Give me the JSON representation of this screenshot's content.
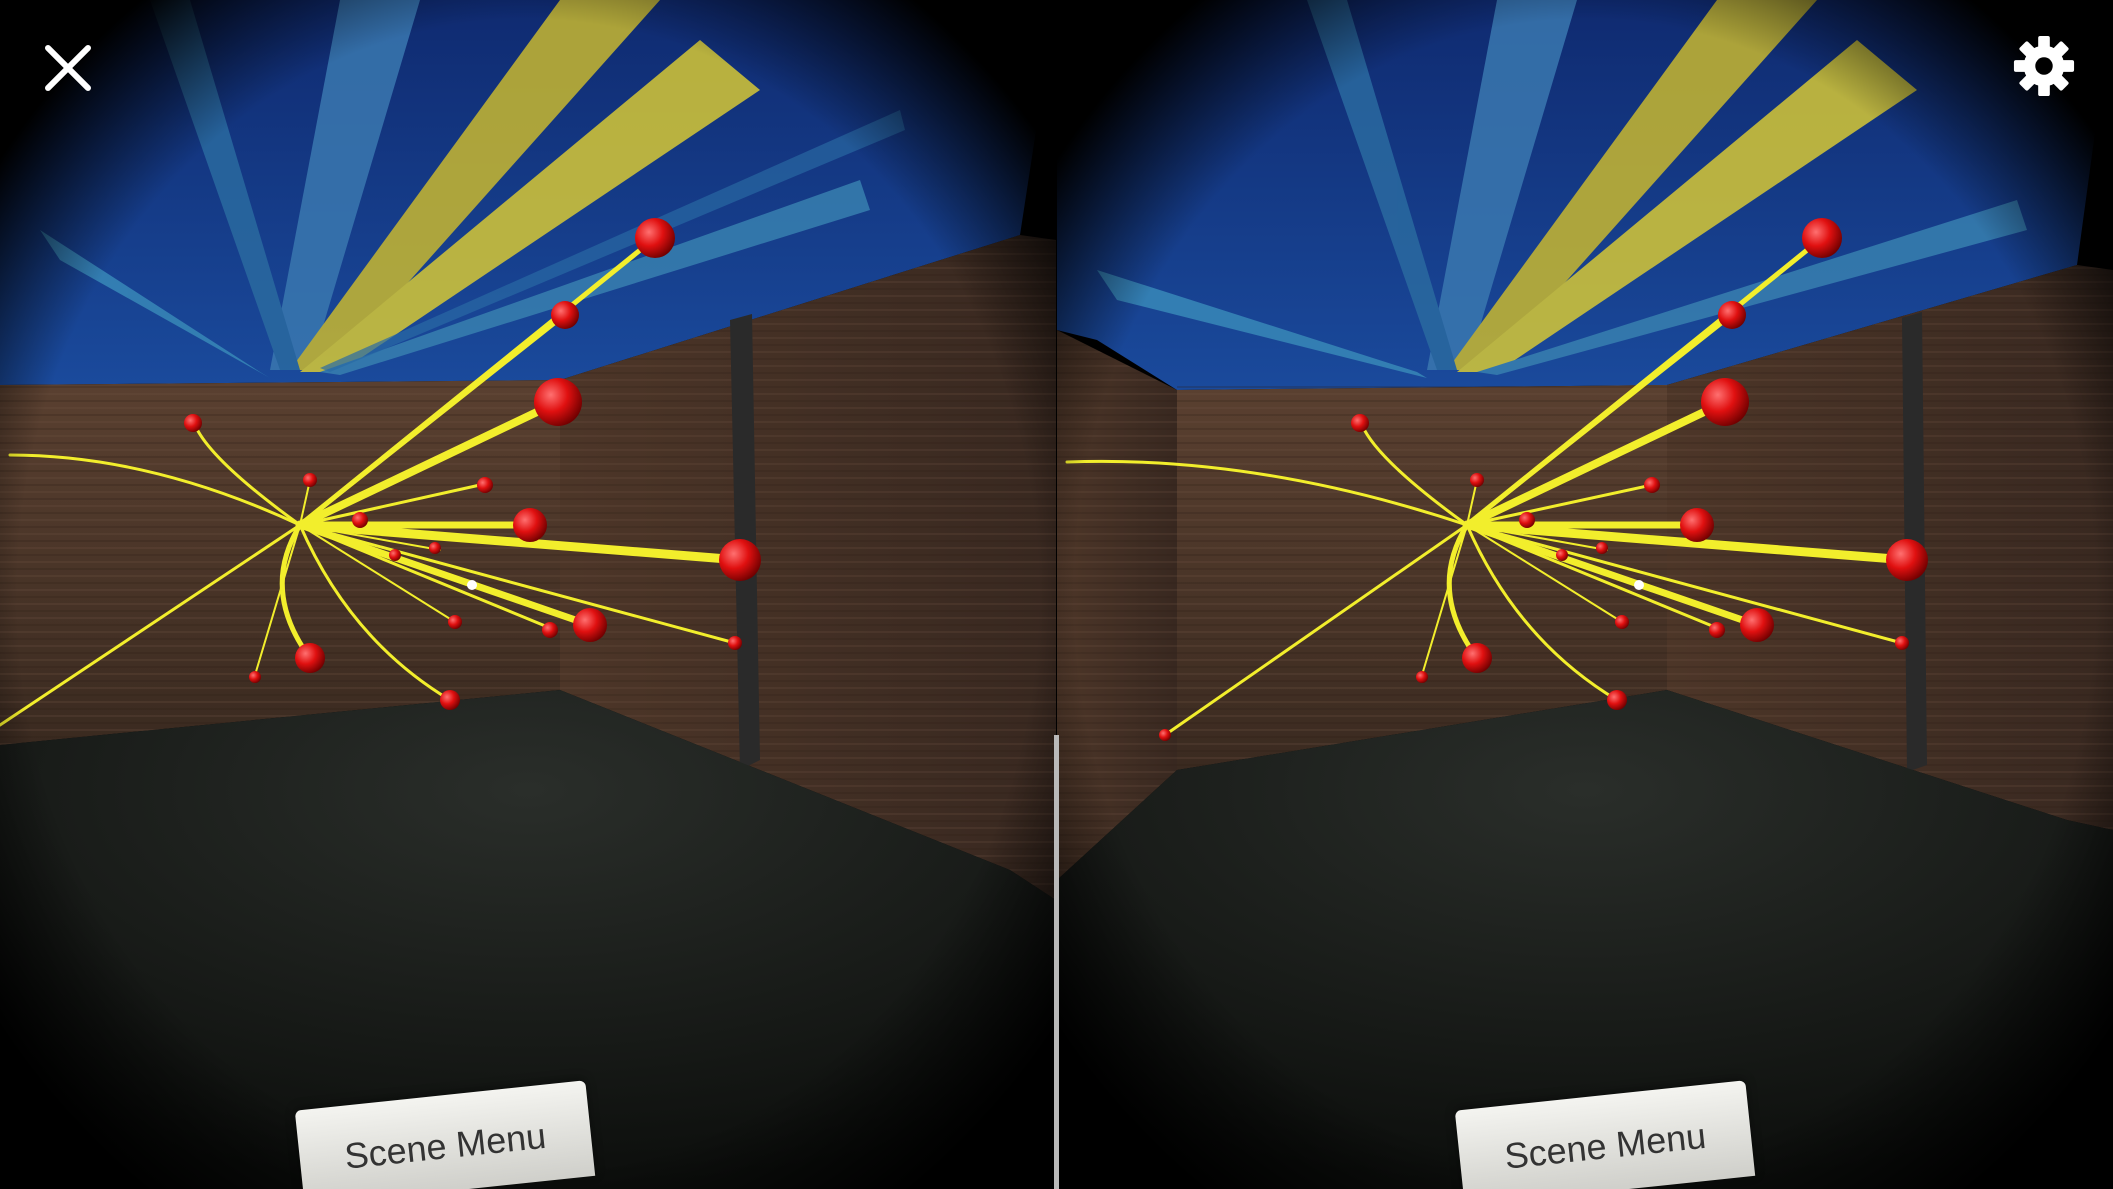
{
  "buttons": {
    "close_icon": "close-icon",
    "settings_icon": "gear-icon"
  },
  "scene_menu": {
    "label": "Scene Menu"
  },
  "colors": {
    "track": "#f2ee2c",
    "track_hit": "#e01010",
    "calorimeter": "#1a3e8c",
    "wall": "#4a3428",
    "floor": "#1c1e1c"
  }
}
